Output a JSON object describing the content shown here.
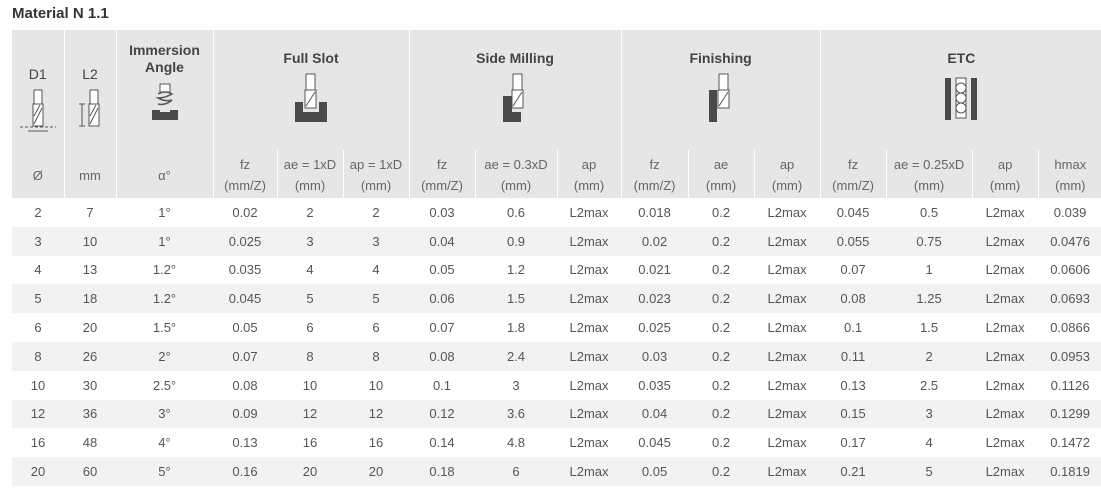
{
  "title": "Material N 1.1",
  "header": {
    "d1": "D1",
    "l2": "L2",
    "immersion": [
      "Immersion",
      "Angle"
    ],
    "groups": [
      "Full Slot",
      "Side Milling",
      "Finishing",
      "ETC"
    ]
  },
  "subheader": [
    [
      "Ø",
      ""
    ],
    [
      "mm",
      ""
    ],
    [
      "α°",
      ""
    ],
    [
      "fz",
      "(mm/Z)"
    ],
    [
      "ae = 1xD",
      "(mm)"
    ],
    [
      "ap = 1xD",
      "(mm)"
    ],
    [
      "fz",
      "(mm/Z)"
    ],
    [
      "ae = 0.3xD",
      "(mm)"
    ],
    [
      "ap",
      "(mm)"
    ],
    [
      "fz",
      "(mm/Z)"
    ],
    [
      "ae",
      "(mm)"
    ],
    [
      "ap",
      "(mm)"
    ],
    [
      "fz",
      "(mm/Z)"
    ],
    [
      "ae = 0.25xD",
      "(mm)"
    ],
    [
      "ap",
      "(mm)"
    ],
    [
      "hmax",
      "(mm)"
    ]
  ],
  "rows": [
    [
      "2",
      "7",
      "1°",
      "0.02",
      "2",
      "2",
      "0.03",
      "0.6",
      "L2max",
      "0.018",
      "0.2",
      "L2max",
      "0.045",
      "0.5",
      "L2max",
      "0.039"
    ],
    [
      "3",
      "10",
      "1°",
      "0.025",
      "3",
      "3",
      "0.04",
      "0.9",
      "L2max",
      "0.02",
      "0.2",
      "L2max",
      "0.055",
      "0.75",
      "L2max",
      "0.0476"
    ],
    [
      "4",
      "13",
      "1.2°",
      "0.035",
      "4",
      "4",
      "0.05",
      "1.2",
      "L2max",
      "0.021",
      "0.2",
      "L2max",
      "0.07",
      "1",
      "L2max",
      "0.0606"
    ],
    [
      "5",
      "18",
      "1.2°",
      "0.045",
      "5",
      "5",
      "0.06",
      "1.5",
      "L2max",
      "0.023",
      "0.2",
      "L2max",
      "0.08",
      "1.25",
      "L2max",
      "0.0693"
    ],
    [
      "6",
      "20",
      "1.5°",
      "0.05",
      "6",
      "6",
      "0.07",
      "1.8",
      "L2max",
      "0.025",
      "0.2",
      "L2max",
      "0.1",
      "1.5",
      "L2max",
      "0.0866"
    ],
    [
      "8",
      "26",
      "2°",
      "0.07",
      "8",
      "8",
      "0.08",
      "2.4",
      "L2max",
      "0.03",
      "0.2",
      "L2max",
      "0.11",
      "2",
      "L2max",
      "0.0953"
    ],
    [
      "10",
      "30",
      "2.5°",
      "0.08",
      "10",
      "10",
      "0.1",
      "3",
      "L2max",
      "0.035",
      "0.2",
      "L2max",
      "0.13",
      "2.5",
      "L2max",
      "0.1126"
    ],
    [
      "12",
      "36",
      "3°",
      "0.09",
      "12",
      "12",
      "0.12",
      "3.6",
      "L2max",
      "0.04",
      "0.2",
      "L2max",
      "0.15",
      "3",
      "L2max",
      "0.1299"
    ],
    [
      "16",
      "48",
      "4°",
      "0.13",
      "16",
      "16",
      "0.14",
      "4.8",
      "L2max",
      "0.045",
      "0.2",
      "L2max",
      "0.17",
      "4",
      "L2max",
      "0.1472"
    ],
    [
      "20",
      "60",
      "5°",
      "0.16",
      "20",
      "20",
      "0.18",
      "6",
      "L2max",
      "0.05",
      "0.2",
      "L2max",
      "0.21",
      "5",
      "L2max",
      "0.1819"
    ]
  ]
}
